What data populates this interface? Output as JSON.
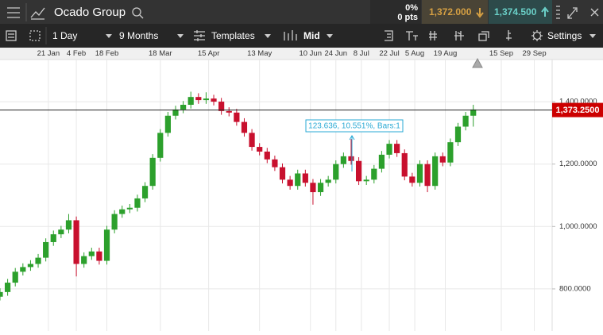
{
  "header": {
    "instrument": "Ocado Group",
    "change_pct": "0%",
    "change_pts": "0 pts",
    "sell": "1,372.000",
    "buy": "1,374.500"
  },
  "toolbar": {
    "interval": "1 Day",
    "range": "9 Months",
    "templates": "Templates",
    "price_type": "Mid",
    "settings": "Settings"
  },
  "chart_data": {
    "type": "candlestick",
    "x": [
      0,
      3,
      6,
      9,
      12,
      15,
      18,
      21,
      24,
      27,
      30,
      33,
      36,
      39,
      42,
      45,
      48,
      51,
      54,
      57,
      60,
      63,
      66,
      69,
      72,
      75,
      78,
      81,
      84,
      87,
      90,
      93,
      96,
      99,
      102,
      105,
      108,
      111,
      114,
      117,
      120,
      123,
      126,
      129,
      132,
      135,
      138,
      141,
      144,
      147,
      150,
      153,
      156,
      159,
      162,
      165,
      168,
      171,
      174,
      177,
      180,
      183,
      186
    ],
    "open": [
      775,
      790,
      820,
      855,
      870,
      880,
      900,
      950,
      975,
      990,
      1020,
      880,
      905,
      920,
      890,
      990,
      1040,
      1055,
      1060,
      1090,
      1130,
      1220,
      1300,
      1355,
      1375,
      1390,
      1415,
      1405,
      1410,
      1400,
      1370,
      1365,
      1335,
      1300,
      1255,
      1240,
      1215,
      1190,
      1150,
      1130,
      1170,
      1140,
      1110,
      1140,
      1150,
      1200,
      1225,
      1210,
      1145,
      1150,
      1185,
      1230,
      1265,
      1235,
      1160,
      1140,
      1200,
      1130,
      1225,
      1205,
      1270,
      1320,
      1355
    ],
    "high": [
      802,
      832,
      867,
      882,
      892,
      912,
      962,
      987,
      1002,
      1040,
      1032,
      917,
      932,
      932,
      1002,
      1052,
      1067,
      1072,
      1102,
      1142,
      1232,
      1312,
      1367,
      1387,
      1402,
      1432,
      1427,
      1430,
      1422,
      1412,
      1382,
      1377,
      1347,
      1312,
      1267,
      1252,
      1227,
      1202,
      1162,
      1182,
      1182,
      1152,
      1152,
      1162,
      1212,
      1237,
      1280,
      1222,
      1162,
      1197,
      1242,
      1277,
      1277,
      1247,
      1172,
      1212,
      1212,
      1237,
      1237,
      1282,
      1332,
      1367,
      1390
    ],
    "low": [
      763,
      778,
      808,
      843,
      858,
      868,
      888,
      938,
      963,
      978,
      840,
      868,
      893,
      878,
      878,
      978,
      1028,
      1043,
      1048,
      1078,
      1118,
      1208,
      1288,
      1343,
      1363,
      1378,
      1393,
      1393,
      1388,
      1358,
      1353,
      1323,
      1288,
      1243,
      1228,
      1203,
      1178,
      1138,
      1118,
      1118,
      1128,
      1070,
      1098,
      1128,
      1138,
      1188,
      1198,
      1133,
      1133,
      1138,
      1173,
      1218,
      1223,
      1148,
      1128,
      1128,
      1110,
      1118,
      1193,
      1193,
      1258,
      1308,
      1320
    ],
    "close": [
      790,
      820,
      855,
      870,
      880,
      900,
      950,
      975,
      990,
      1020,
      880,
      905,
      920,
      890,
      990,
      1040,
      1055,
      1060,
      1090,
      1130,
      1220,
      1300,
      1355,
      1375,
      1390,
      1415,
      1405,
      1410,
      1400,
      1370,
      1365,
      1335,
      1300,
      1255,
      1240,
      1215,
      1190,
      1150,
      1130,
      1170,
      1140,
      1110,
      1140,
      1150,
      1200,
      1225,
      1210,
      1145,
      1150,
      1185,
      1230,
      1265,
      1235,
      1160,
      1140,
      1200,
      1130,
      1225,
      1205,
      1270,
      1320,
      1355,
      1375
    ],
    "up_color": "#2ca02c",
    "down_color": "#c8102e",
    "xlim": [
      0,
      217
    ],
    "xticks": [
      {
        "value": 19,
        "label": "21 Jan"
      },
      {
        "value": 30,
        "label": "4 Feb"
      },
      {
        "value": 42,
        "label": "18 Feb"
      },
      {
        "value": 63,
        "label": "18 Mar"
      },
      {
        "value": 82,
        "label": "15 Apr"
      },
      {
        "value": 102,
        "label": "13 May"
      },
      {
        "value": 122,
        "label": "10 Jun"
      },
      {
        "value": 132,
        "label": "24 Jun"
      },
      {
        "value": 142,
        "label": "8 Jul"
      },
      {
        "value": 153,
        "label": "22 Jul"
      },
      {
        "value": 163,
        "label": "5 Aug"
      },
      {
        "value": 175,
        "label": "19 Aug"
      },
      {
        "value": 197,
        "label": "15 Sep"
      },
      {
        "value": 210,
        "label": "29 Sep"
      }
    ],
    "ylim": [
      665,
      1535
    ],
    "yticks": [
      {
        "value": 800,
        "label": "800.0000"
      },
      {
        "value": 1000,
        "label": "1,000.0000"
      },
      {
        "value": 1200,
        "label": "1,200.0000"
      },
      {
        "value": 1400,
        "label": "1,400.0000"
      }
    ],
    "grid": true,
    "current_price": {
      "value": 1373.25,
      "label": "1,373.2500"
    },
    "annotation": "123.636, 10.551%, Bars:1"
  }
}
